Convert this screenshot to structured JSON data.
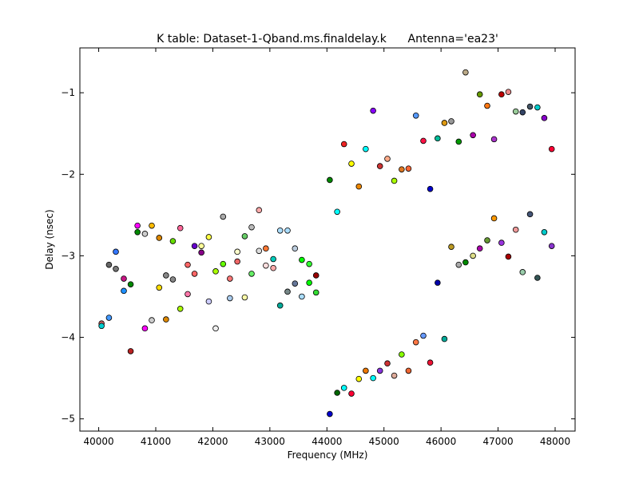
{
  "chart_data": {
    "type": "scatter",
    "title": "K table: Dataset-1-Qband.ms.finaldelay.k      Antenna='ea23'",
    "xlabel": "Frequency (MHz)",
    "ylabel": "Delay (nsec)",
    "xlim": [
      39670,
      48350
    ],
    "ylim": [
      -5.15,
      -0.45
    ],
    "xticks": [
      40000,
      41000,
      42000,
      43000,
      44000,
      45000,
      46000,
      47000,
      48000
    ],
    "xtick_labels": [
      "40000",
      "41000",
      "42000",
      "43000",
      "44000",
      "45000",
      "46000",
      "47000",
      "48000"
    ],
    "yticks": [
      -5,
      -4,
      -3,
      -2,
      -1
    ],
    "ytick_labels": [
      "−5",
      "−4",
      "−3",
      "−2",
      "−1"
    ],
    "grid": false,
    "legend": "none",
    "points": [
      {
        "x": 40050,
        "y": -3.83,
        "color": "#cc6666"
      },
      {
        "x": 40050,
        "y": -3.86,
        "color": "#00ced1"
      },
      {
        "x": 40180,
        "y": -3.76,
        "color": "#4499ff"
      },
      {
        "x": 40180,
        "y": -3.11,
        "color": "#666666"
      },
      {
        "x": 40300,
        "y": -2.95,
        "color": "#3377ff"
      },
      {
        "x": 40300,
        "y": -3.16,
        "color": "#777777"
      },
      {
        "x": 40440,
        "y": -3.28,
        "color": "#c71585"
      },
      {
        "x": 40440,
        "y": -3.43,
        "color": "#1e90ff"
      },
      {
        "x": 40560,
        "y": -4.17,
        "color": "#bb2222"
      },
      {
        "x": 40560,
        "y": -3.35,
        "color": "#008800"
      },
      {
        "x": 40680,
        "y": -2.63,
        "color": "#ff00ff"
      },
      {
        "x": 40680,
        "y": -2.71,
        "color": "#008800"
      },
      {
        "x": 40810,
        "y": -3.89,
        "color": "#ff00ff"
      },
      {
        "x": 40810,
        "y": -2.73,
        "color": "#cccccc"
      },
      {
        "x": 40930,
        "y": -2.63,
        "color": "#ffbb00"
      },
      {
        "x": 40930,
        "y": -3.79,
        "color": "#cccccc"
      },
      {
        "x": 41060,
        "y": -2.78,
        "color": "#dd8800"
      },
      {
        "x": 41060,
        "y": -3.39,
        "color": "#ffdd00"
      },
      {
        "x": 41180,
        "y": -3.24,
        "color": "#888888"
      },
      {
        "x": 41180,
        "y": -3.78,
        "color": "#dd8800"
      },
      {
        "x": 41300,
        "y": -2.82,
        "color": "#66dd00"
      },
      {
        "x": 41300,
        "y": -3.29,
        "color": "#888888"
      },
      {
        "x": 41430,
        "y": -2.66,
        "color": "#ff6699"
      },
      {
        "x": 41430,
        "y": -3.65,
        "color": "#aaff00"
      },
      {
        "x": 41560,
        "y": -3.11,
        "color": "#ff6666"
      },
      {
        "x": 41560,
        "y": -3.47,
        "color": "#ff77aa"
      },
      {
        "x": 41680,
        "y": -2.88,
        "color": "#6600cc"
      },
      {
        "x": 41680,
        "y": -3.22,
        "color": "#ff6666"
      },
      {
        "x": 41800,
        "y": -2.88,
        "color": "#ffff99"
      },
      {
        "x": 41800,
        "y": -2.96,
        "color": "#880088"
      },
      {
        "x": 41930,
        "y": -2.77,
        "color": "#ffff44"
      },
      {
        "x": 41930,
        "y": -3.56,
        "color": "#ccccff"
      },
      {
        "x": 42050,
        "y": -3.19,
        "color": "#aaff00"
      },
      {
        "x": 42050,
        "y": -3.89,
        "color": "#eeeeee"
      },
      {
        "x": 42180,
        "y": -2.52,
        "color": "#aaaaaa"
      },
      {
        "x": 42180,
        "y": -3.1,
        "color": "#66ff00"
      },
      {
        "x": 42300,
        "y": -3.28,
        "color": "#ff7777"
      },
      {
        "x": 42300,
        "y": -3.52,
        "color": "#aaccee"
      },
      {
        "x": 42430,
        "y": -2.95,
        "color": "#ffffcc"
      },
      {
        "x": 42430,
        "y": -3.07,
        "color": "#ee6666"
      },
      {
        "x": 42560,
        "y": -2.76,
        "color": "#66cc66"
      },
      {
        "x": 42560,
        "y": -3.51,
        "color": "#ffffaa"
      },
      {
        "x": 42680,
        "y": -2.65,
        "color": "#bbbbbb"
      },
      {
        "x": 42680,
        "y": -3.22,
        "color": "#66ee66"
      },
      {
        "x": 42810,
        "y": -2.44,
        "color": "#ffaaaa"
      },
      {
        "x": 42810,
        "y": -2.94,
        "color": "#dddddd"
      },
      {
        "x": 42930,
        "y": -2.91,
        "color": "#ff7733"
      },
      {
        "x": 42930,
        "y": -3.12,
        "color": "#ffdddd"
      },
      {
        "x": 43060,
        "y": -3.04,
        "color": "#00ccbb"
      },
      {
        "x": 43060,
        "y": -3.15,
        "color": "#ffaaaa"
      },
      {
        "x": 43180,
        "y": -2.69,
        "color": "#aaddff"
      },
      {
        "x": 43180,
        "y": -3.61,
        "color": "#00aa99"
      },
      {
        "x": 43310,
        "y": -2.69,
        "color": "#aaddff"
      },
      {
        "x": 43310,
        "y": -3.44,
        "color": "#778888"
      },
      {
        "x": 43440,
        "y": -2.91,
        "color": "#bbccdd"
      },
      {
        "x": 43440,
        "y": -3.34,
        "color": "#667799"
      },
      {
        "x": 43560,
        "y": -3.05,
        "color": "#00ff00"
      },
      {
        "x": 43560,
        "y": -3.5,
        "color": "#aaddff"
      },
      {
        "x": 43690,
        "y": -3.1,
        "color": "#33ff33"
      },
      {
        "x": 43690,
        "y": -3.33,
        "color": "#00ff00"
      },
      {
        "x": 43810,
        "y": -3.24,
        "color": "#990000"
      },
      {
        "x": 43810,
        "y": -3.45,
        "color": "#33dd33"
      },
      {
        "x": 44050,
        "y": -2.07,
        "color": "#008800"
      },
      {
        "x": 44050,
        "y": -4.94,
        "color": "#0000cc"
      },
      {
        "x": 44180,
        "y": -2.46,
        "color": "#00ffff"
      },
      {
        "x": 44180,
        "y": -4.68,
        "color": "#006600"
      },
      {
        "x": 44300,
        "y": -1.63,
        "color": "#ee2222"
      },
      {
        "x": 44300,
        "y": -4.62,
        "color": "#00ffff"
      },
      {
        "x": 44430,
        "y": -1.87,
        "color": "#ffff00"
      },
      {
        "x": 44430,
        "y": -4.69,
        "color": "#ff0033"
      },
      {
        "x": 44560,
        "y": -2.15,
        "color": "#ee8800"
      },
      {
        "x": 44560,
        "y": -4.51,
        "color": "#ffff00"
      },
      {
        "x": 44680,
        "y": -1.69,
        "color": "#00ffff"
      },
      {
        "x": 44680,
        "y": -4.41,
        "color": "#ee7700"
      },
      {
        "x": 44810,
        "y": -1.22,
        "color": "#8800ff"
      },
      {
        "x": 44810,
        "y": -4.5,
        "color": "#00ffff"
      },
      {
        "x": 44930,
        "y": -1.9,
        "color": "#cc3333"
      },
      {
        "x": 44930,
        "y": -4.41,
        "color": "#8833dd"
      },
      {
        "x": 45060,
        "y": -1.81,
        "color": "#ffaa88"
      },
      {
        "x": 45060,
        "y": -4.32,
        "color": "#cc3333"
      },
      {
        "x": 45180,
        "y": -2.08,
        "color": "#aaff00"
      },
      {
        "x": 45180,
        "y": -4.47,
        "color": "#ddaa99"
      },
      {
        "x": 45310,
        "y": -1.94,
        "color": "#dd7722"
      },
      {
        "x": 45310,
        "y": -4.21,
        "color": "#88ff00"
      },
      {
        "x": 45430,
        "y": -1.93,
        "color": "#ff6633"
      },
      {
        "x": 45430,
        "y": -4.41,
        "color": "#ee6633"
      },
      {
        "x": 45560,
        "y": -1.28,
        "color": "#5599ff"
      },
      {
        "x": 45560,
        "y": -4.06,
        "color": "#ff7744"
      },
      {
        "x": 45690,
        "y": -1.59,
        "color": "#ff1144"
      },
      {
        "x": 45690,
        "y": -3.98,
        "color": "#6699ff"
      },
      {
        "x": 45810,
        "y": -2.18,
        "color": "#0000cc"
      },
      {
        "x": 45810,
        "y": -4.31,
        "color": "#ee1133"
      },
      {
        "x": 45940,
        "y": -1.56,
        "color": "#00bb99"
      },
      {
        "x": 45940,
        "y": -3.33,
        "color": "#0000aa"
      },
      {
        "x": 46060,
        "y": -1.37,
        "color": "#dd9911"
      },
      {
        "x": 46060,
        "y": -4.02,
        "color": "#00aa99"
      },
      {
        "x": 46180,
        "y": -1.35,
        "color": "#999999"
      },
      {
        "x": 46180,
        "y": -2.89,
        "color": "#bb9922"
      },
      {
        "x": 46310,
        "y": -1.6,
        "color": "#009900"
      },
      {
        "x": 46310,
        "y": -3.11,
        "color": "#aaaaaa"
      },
      {
        "x": 46430,
        "y": -0.75,
        "color": "#bbaa88"
      },
      {
        "x": 46430,
        "y": -3.08,
        "color": "#008800"
      },
      {
        "x": 46560,
        "y": -1.52,
        "color": "#aa00aa"
      },
      {
        "x": 46560,
        "y": -3.0,
        "color": "#dddd88"
      },
      {
        "x": 46680,
        "y": -1.02,
        "color": "#669900"
      },
      {
        "x": 46680,
        "y": -2.91,
        "color": "#aa00aa"
      },
      {
        "x": 46810,
        "y": -1.16,
        "color": "#ff7711"
      },
      {
        "x": 46810,
        "y": -2.81,
        "color": "#669933"
      },
      {
        "x": 46930,
        "y": -1.57,
        "color": "#aa33cc"
      },
      {
        "x": 46930,
        "y": -2.54,
        "color": "#ff9900"
      },
      {
        "x": 47060,
        "y": -1.02,
        "color": "#bb0000"
      },
      {
        "x": 47060,
        "y": -2.84,
        "color": "#9933dd"
      },
      {
        "x": 47180,
        "y": -0.99,
        "color": "#ee8888"
      },
      {
        "x": 47180,
        "y": -3.01,
        "color": "#aa0000"
      },
      {
        "x": 47310,
        "y": -1.23,
        "color": "#99cc99"
      },
      {
        "x": 47310,
        "y": -2.68,
        "color": "#ee9999"
      },
      {
        "x": 47430,
        "y": -1.24,
        "color": "#334466"
      },
      {
        "x": 47430,
        "y": -3.2,
        "color": "#99ccaa"
      },
      {
        "x": 47560,
        "y": -1.17,
        "color": "#445566"
      },
      {
        "x": 47560,
        "y": -2.49,
        "color": "#445577"
      },
      {
        "x": 47690,
        "y": -1.18,
        "color": "#00cccc"
      },
      {
        "x": 47690,
        "y": -3.27,
        "color": "#335555"
      },
      {
        "x": 47810,
        "y": -1.31,
        "color": "#8800cc"
      },
      {
        "x": 47810,
        "y": -2.71,
        "color": "#00cccc"
      },
      {
        "x": 47940,
        "y": -1.69,
        "color": "#ff0033"
      },
      {
        "x": 47940,
        "y": -2.88,
        "color": "#8833cc"
      }
    ]
  }
}
